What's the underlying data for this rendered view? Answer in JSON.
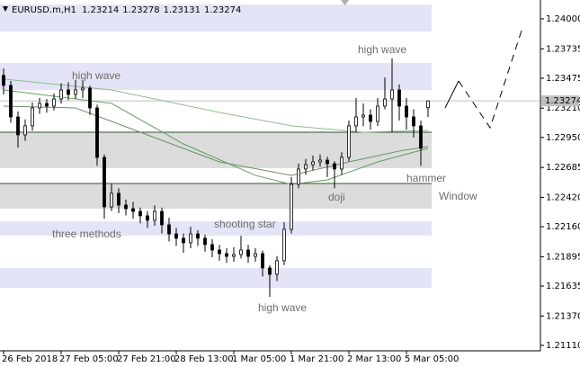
{
  "chart_data": {
    "type": "candlestick",
    "title": "EURUSD.m,H1",
    "xlim": [
      -0.5,
      74.5
    ],
    "ylim": [
      1.21062,
      1.24167
    ],
    "yticks": [
      {
        "value": 1.24,
        "label": "1.24000"
      },
      1.23735,
      1.23475,
      {
        "value": 1.2321,
        "label": "1.23210"
      },
      {
        "value": 1.2295,
        "label": "1.22950"
      },
      1.22685,
      {
        "value": 1.2242,
        "label": "1.22420"
      },
      {
        "value": 1.2216,
        "label": "1.22160"
      },
      1.21895,
      1.21635,
      {
        "value": 1.2137,
        "label": "1.21370"
      },
      {
        "value": 1.2111,
        "label": "1.21110"
      }
    ],
    "xticks": [
      {
        "value": 0,
        "label": "26 Feb 2018"
      },
      {
        "value": 8,
        "label": "27 Feb 05:00"
      },
      {
        "value": 16,
        "label": "27 Feb 21:00"
      },
      {
        "value": 24,
        "label": "28 Feb 13:00"
      },
      {
        "value": 32,
        "label": "1 Mar 05:00"
      },
      {
        "value": 40,
        "label": "1 Mar 21:00"
      },
      {
        "value": 48,
        "label": "2 Mar 13:00"
      },
      {
        "value": 56,
        "label": "5 Mar 05:00"
      }
    ],
    "open": [
      1.235,
      1.23411,
      1.23132,
      1.22973,
      1.23053,
      1.23212,
      1.23252,
      1.23228,
      1.23291,
      1.23371,
      1.23331,
      1.23371,
      1.23387,
      1.23212,
      1.22774,
      1.22336,
      1.22456,
      1.22352,
      1.2232,
      1.22296,
      1.22257,
      1.22217,
      1.22296,
      1.22177,
      1.22097,
      1.22058,
      1.22018,
      1.22097,
      1.22058,
      1.22002,
      1.21954,
      1.21922,
      1.21898,
      1.21914,
      1.21954,
      1.21898,
      1.21922,
      1.21795,
      1.21739,
      1.21859,
      1.22137,
      1.22535,
      1.22671,
      1.2271,
      1.22734,
      1.2275,
      1.22718,
      1.22671,
      1.22774,
      1.23053,
      1.23132,
      1.23148,
      1.23092,
      1.23228,
      1.23291,
      1.23371,
      1.23228,
      1.23132,
      1.23053,
      1.23214
    ],
    "high": [
      1.2356,
      1.2345,
      1.2318,
      1.2311,
      1.2326,
      1.233,
      1.2329,
      1.2334,
      1.2343,
      1.2344,
      1.2346,
      1.2345,
      1.2341,
      1.2324,
      1.228,
      1.2254,
      1.225,
      1.224,
      1.2238,
      1.2233,
      1.223,
      1.2235,
      1.2233,
      1.2224,
      1.2215,
      1.221,
      1.2216,
      1.2213,
      1.2209,
      1.2205,
      1.22,
      1.2197,
      1.2198,
      1.2208,
      1.22,
      1.2197,
      1.2195,
      1.2182,
      1.219,
      1.222,
      1.226,
      1.2272,
      1.2276,
      1.2279,
      1.228,
      1.2278,
      1.2274,
      1.2282,
      1.231,
      1.233,
      1.2325,
      1.232,
      1.233,
      1.2348,
      1.2365,
      1.2342,
      1.233,
      1.232,
      1.231,
      1.23278
    ],
    "low": [
      1.2333,
      1.2308,
      1.2286,
      1.2292,
      1.2301,
      1.2316,
      1.2317,
      1.2319,
      1.2325,
      1.2328,
      1.2329,
      1.233,
      1.2315,
      1.227,
      1.2223,
      1.223,
      1.2228,
      1.2226,
      1.2223,
      1.2219,
      1.2215,
      1.2217,
      1.221,
      1.2203,
      1.2199,
      1.2193,
      1.2197,
      1.2199,
      1.2194,
      1.2189,
      1.2186,
      1.2184,
      1.2185,
      1.2188,
      1.2184,
      1.2185,
      1.2172,
      1.2154,
      1.2168,
      1.2182,
      1.221,
      1.225,
      1.2262,
      1.2266,
      1.2269,
      1.226,
      1.225,
      1.2262,
      1.2274,
      1.23,
      1.2305,
      1.2302,
      1.2305,
      1.232,
      1.23,
      1.231,
      1.2302,
      1.2295,
      1.227,
      1.23131
    ],
    "close": [
      1.23411,
      1.23132,
      1.22973,
      1.23053,
      1.23212,
      1.23252,
      1.23228,
      1.23291,
      1.23371,
      1.23331,
      1.23371,
      1.23387,
      1.23212,
      1.22774,
      1.22336,
      1.22456,
      1.22352,
      1.2232,
      1.22296,
      1.22257,
      1.22217,
      1.22296,
      1.22177,
      1.22097,
      1.22058,
      1.22018,
      1.22097,
      1.22058,
      1.22002,
      1.21954,
      1.21922,
      1.21898,
      1.21914,
      1.21954,
      1.21898,
      1.21922,
      1.21795,
      1.21739,
      1.21859,
      1.22137,
      1.22535,
      1.22671,
      1.2271,
      1.22734,
      1.2275,
      1.22718,
      1.22671,
      1.22774,
      1.23053,
      1.23132,
      1.23148,
      1.23092,
      1.23228,
      1.23291,
      1.23371,
      1.23228,
      1.23132,
      1.23053,
      1.22854,
      1.23274
    ],
    "zones": [
      {
        "top": 1.24127,
        "bottom": 1.23888,
        "color": "#e4e4f7"
      },
      {
        "top": 1.2361,
        "bottom": 1.23371,
        "color": "#e4e4f7"
      },
      {
        "top": 1.22997,
        "bottom": 1.22678,
        "color": "#dcdcdc"
      },
      {
        "top": 1.22543,
        "bottom": 1.2232,
        "color": "#dcdcdc"
      },
      {
        "top": 1.22208,
        "bottom": 1.22081,
        "color": "#e4e4f7"
      },
      {
        "top": 1.21794,
        "bottom": 1.21619,
        "color": "#e4e4f7"
      }
    ],
    "levels": [
      {
        "value": 1.22997,
        "color": "#2f4f2f"
      },
      {
        "value": 1.22543,
        "color": "#2f4f2f"
      }
    ],
    "indicators": [
      {
        "color": "#8fbc8f",
        "x": [
          0,
          15,
          30,
          40,
          50,
          59
        ],
        "values": [
          1.23467,
          1.23371,
          1.23172,
          1.23053,
          1.22997,
          1.23013
        ]
      },
      {
        "color": "#5f9f5f",
        "x": [
          0,
          15,
          25,
          35,
          40,
          45,
          52,
          59
        ],
        "values": [
          1.23371,
          1.23252,
          1.22893,
          1.22615,
          1.22535,
          1.22575,
          1.22734,
          1.22854
        ]
      },
      {
        "color": "#6b8e6b",
        "x": [
          0,
          10,
          20,
          30,
          40,
          48,
          55,
          59
        ],
        "values": [
          1.23228,
          1.23212,
          1.22973,
          1.22734,
          1.22615,
          1.22734,
          1.2283,
          1.2287
        ]
      }
    ],
    "annotations": [
      "high wave",
      "high wave",
      "three methods",
      "shooting star",
      "doji",
      "hammer",
      "Window",
      "high wave"
    ]
  }
}
